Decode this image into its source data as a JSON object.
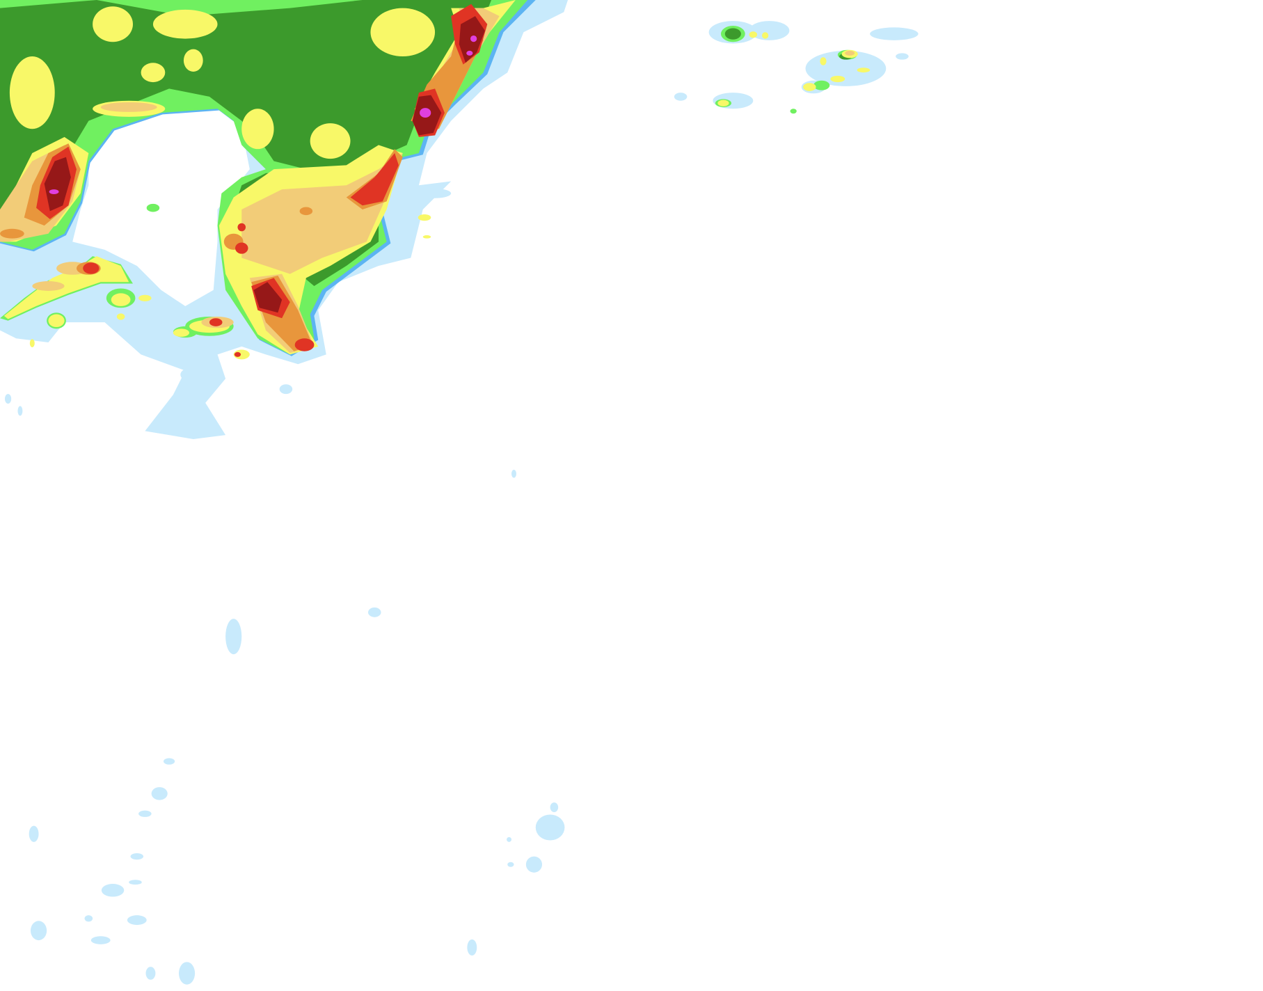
{
  "map": {
    "type": "precipitation-radar-overlay",
    "intensity_colors": [
      "#c8eafc",
      "#5cb4f2",
      "#70f060",
      "#3c9a2c",
      "#f8f868",
      "#f2cc78",
      "#e8963c",
      "#e03424",
      "#961818",
      "#e040e0"
    ]
  }
}
